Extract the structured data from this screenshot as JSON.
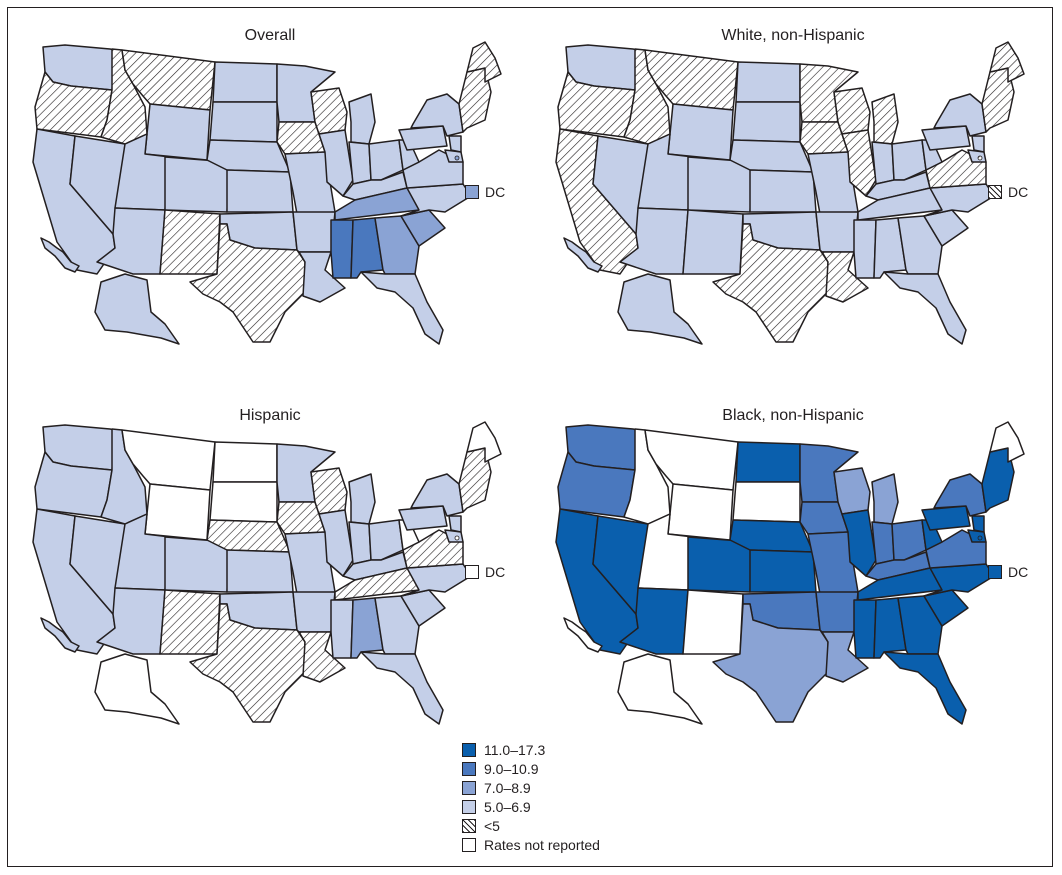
{
  "colors": {
    "c1": "#0a5fad",
    "c2": "#4a78be",
    "c3": "#8aa3d4",
    "c4": "#c4cfe8",
    "hatch": "hatched",
    "none": "#ffffff"
  },
  "legend": [
    {
      "key": "c1",
      "label": "11.0–17.3"
    },
    {
      "key": "c2",
      "label": "9.0–10.9"
    },
    {
      "key": "c3",
      "label": "7.0–8.9"
    },
    {
      "key": "c4",
      "label": "5.0–6.9"
    },
    {
      "key": "hatch",
      "label": "<5"
    },
    {
      "key": "none",
      "label": "Rates not reported"
    }
  ],
  "dc_label": "DC",
  "panels": [
    {
      "title": "Overall",
      "dc": "c3",
      "states": {
        "WA": "c4",
        "OR": "hatch",
        "CA": "c4",
        "NV": "c4",
        "ID": "hatch",
        "MT": "hatch",
        "WY": "c4",
        "UT": "c4",
        "CO": "c4",
        "AZ": "c4",
        "NM": "hatch",
        "ND": "c4",
        "SD": "c4",
        "NE": "c4",
        "KS": "c4",
        "OK": "c4",
        "TX": "hatch",
        "MN": "c4",
        "IA": "hatch",
        "MO": "c4",
        "AR": "c4",
        "LA": "c4",
        "WI": "hatch",
        "IL": "c4",
        "MI": "c4",
        "IN": "c4",
        "OH": "c4",
        "KY": "c4",
        "TN": "c3",
        "MS": "c2",
        "AL": "c2",
        "GA": "c3",
        "FL": "c4",
        "SC": "c3",
        "NC": "c4",
        "VA": "c4",
        "WV": "c4",
        "PA": "c4",
        "NY": "c4",
        "NE_REG": "hatch",
        "MD": "c4",
        "NJ": "c4",
        "ME": "hatch",
        "AK": "c4",
        "HI": "c4"
      }
    },
    {
      "title": "White, non-Hispanic",
      "dc": "hatch",
      "states": {
        "WA": "c4",
        "OR": "hatch",
        "CA": "hatch",
        "NV": "c4",
        "ID": "hatch",
        "MT": "hatch",
        "WY": "c4",
        "UT": "c4",
        "CO": "c4",
        "AZ": "c4",
        "NM": "c4",
        "ND": "c4",
        "SD": "c4",
        "NE": "c4",
        "KS": "c4",
        "OK": "c4",
        "TX": "hatch",
        "MN": "hatch",
        "IA": "hatch",
        "MO": "c4",
        "AR": "c4",
        "LA": "hatch",
        "WI": "hatch",
        "IL": "hatch",
        "MI": "hatch",
        "IN": "c4",
        "OH": "c4",
        "KY": "c4",
        "TN": "c4",
        "MS": "c4",
        "AL": "c4",
        "GA": "c4",
        "FL": "c4",
        "SC": "c4",
        "NC": "c4",
        "VA": "hatch",
        "WV": "c4",
        "PA": "c4",
        "NY": "c4",
        "NE_REG": "hatch",
        "MD": "c4",
        "NJ": "c4",
        "ME": "hatch",
        "AK": "c4",
        "HI": "c4"
      }
    },
    {
      "title": "Hispanic",
      "dc": "none",
      "states": {
        "WA": "c4",
        "OR": "c4",
        "CA": "c4",
        "NV": "c4",
        "ID": "c4",
        "MT": "none",
        "WY": "none",
        "UT": "c4",
        "CO": "c4",
        "AZ": "c4",
        "NM": "hatch",
        "ND": "none",
        "SD": "none",
        "NE": "hatch",
        "KS": "c4",
        "OK": "c4",
        "TX": "hatch",
        "MN": "c4",
        "IA": "hatch",
        "MO": "c4",
        "AR": "c4",
        "LA": "hatch",
        "WI": "hatch",
        "IL": "c4",
        "MI": "c4",
        "IN": "c4",
        "OH": "c4",
        "KY": "c4",
        "TN": "hatch",
        "MS": "c4",
        "AL": "c3",
        "GA": "c4",
        "FL": "c4",
        "SC": "c4",
        "NC": "c4",
        "VA": "hatch",
        "WV": "none",
        "PA": "c4",
        "NY": "c4",
        "NE_REG": "hatch",
        "MD": "c4",
        "NJ": "c4",
        "ME": "none",
        "AK": "none",
        "HI": "c4"
      }
    },
    {
      "title": "Black, non-Hispanic",
      "dc": "c1",
      "states": {
        "WA": "c2",
        "OR": "c2",
        "CA": "c1",
        "NV": "c1",
        "ID": "none",
        "MT": "none",
        "WY": "none",
        "UT": "none",
        "CO": "c1",
        "AZ": "c1",
        "NM": "none",
        "ND": "c1",
        "SD": "none",
        "NE": "c1",
        "KS": "c1",
        "OK": "c2",
        "TX": "c3",
        "MN": "c2",
        "IA": "c2",
        "MO": "c2",
        "AR": "c2",
        "LA": "c3",
        "WI": "c3",
        "IL": "c1",
        "MI": "c3",
        "IN": "c2",
        "OH": "c2",
        "KY": "c2",
        "TN": "c1",
        "MS": "c1",
        "AL": "c1",
        "GA": "c1",
        "FL": "c1",
        "SC": "c1",
        "NC": "c1",
        "VA": "c2",
        "WV": "c1",
        "PA": "c1",
        "NY": "c2",
        "NE_REG": "c1",
        "MD": "c1",
        "NJ": "c1",
        "ME": "none",
        "AK": "none",
        "HI": "none"
      }
    }
  ]
}
